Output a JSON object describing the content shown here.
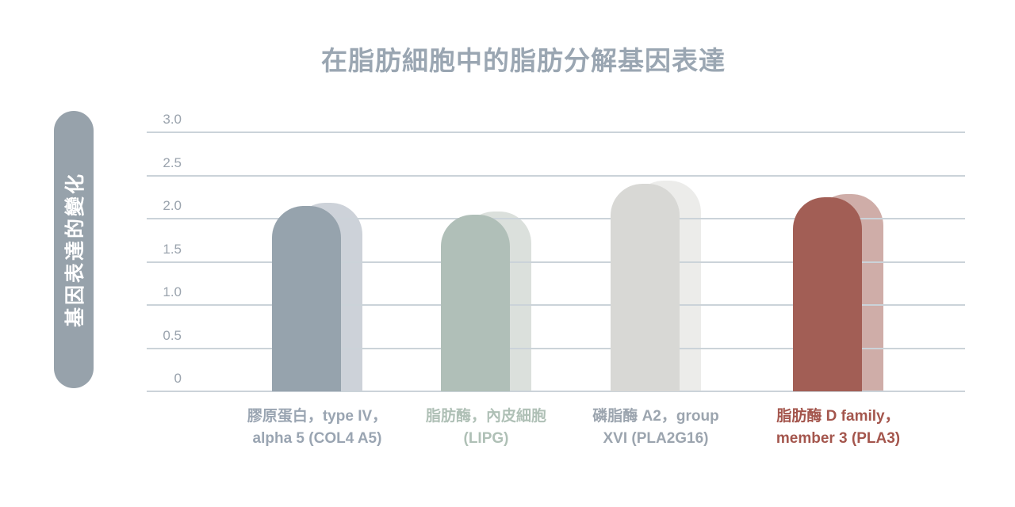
{
  "title": "在脂肪細胞中的脂肪分解基因表達",
  "y_axis_label": "基因表達的變化",
  "colors": {
    "title_text": "#9AA6B2",
    "y_pill_background": "#97A2AB",
    "y_pill_text": "#FFFFFF",
    "gridline": "#CBD3D9",
    "tick_text": "#9BA4AE",
    "background": "#FFFFFF"
  },
  "chart_data": {
    "type": "bar",
    "title": "在脂肪細胞中的脂肪分解基因表達",
    "ylabel": "基因表達的變化",
    "xlabel": "",
    "ylim": [
      0,
      3.0
    ],
    "ytick_labels": [
      "3.0",
      "2.5",
      "2.0",
      "1.5",
      "1.0",
      "0.5",
      "0"
    ],
    "ytick_values": [
      3.0,
      2.5,
      2.0,
      1.5,
      1.0,
      0.5,
      0
    ],
    "grid": "horizontal",
    "legend": "none",
    "bars": [
      {
        "label_line1": "膠原蛋白，type IV，",
        "label_line2": "alpha 5 (COL4 A5)",
        "value": 2.15,
        "bar_color": "#96A3AD",
        "shadow_color": "#CDD2D9",
        "label_color": "#9AA5B2"
      },
      {
        "label_line1": "脂肪酶，內皮細胞",
        "label_line2": "(LIPG)",
        "value": 2.05,
        "bar_color": "#B0BFB8",
        "shadow_color": "#DBE0DC",
        "label_color": "#AFC0B6"
      },
      {
        "label_line1": "磷脂酶 A2，group",
        "label_line2": "XVI (PLA2G16)",
        "value": 2.4,
        "bar_color": "#D8D8D5",
        "shadow_color": "#ECECEA",
        "label_color": "#9CA5AF"
      },
      {
        "label_line1": "脂肪酶 D family，",
        "label_line2": "member 3 (PLA3)",
        "value": 2.25,
        "bar_color": "#A25E55",
        "shadow_color": "#CFADA8",
        "label_color": "#A4564D"
      }
    ]
  }
}
